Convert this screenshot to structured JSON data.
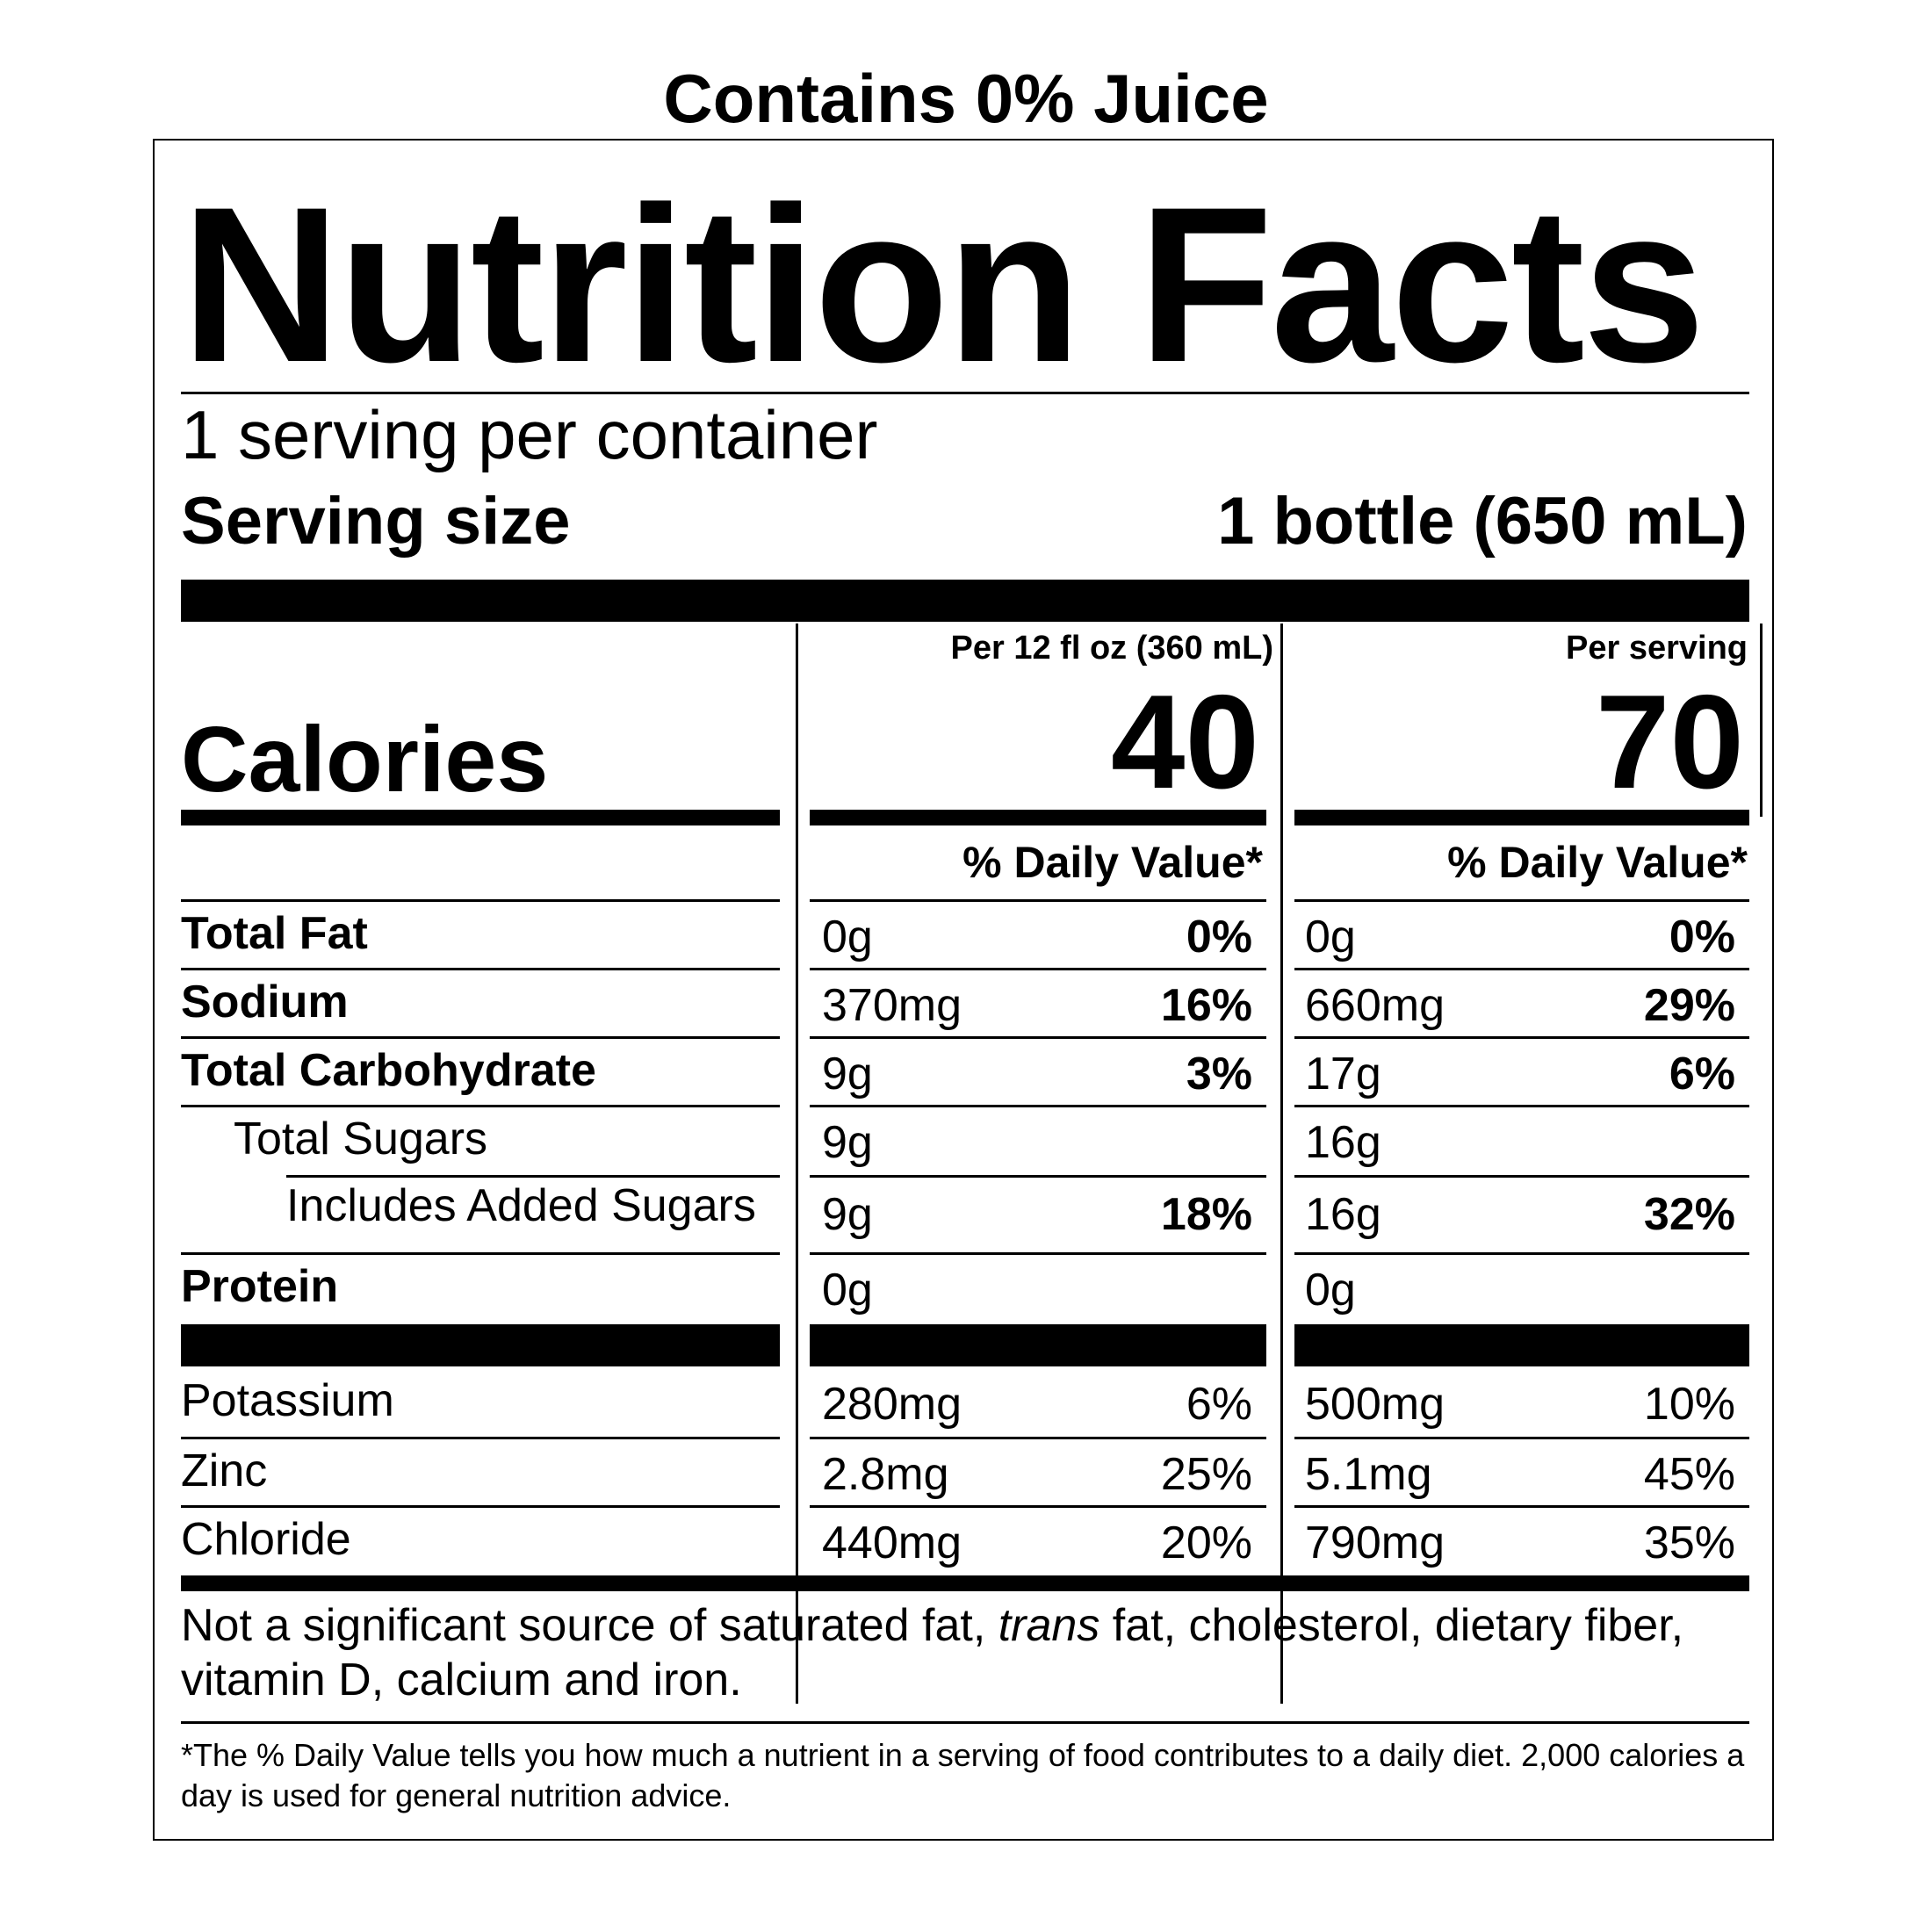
{
  "header": {
    "juice_note": "Contains 0% Juice"
  },
  "label": {
    "title": "Nutrition Facts",
    "servings_per_container": "1 serving per container",
    "serving_size_label": "Serving size",
    "serving_size_value": "1 bottle (650 mL)",
    "calories_label": "Calories",
    "columns": [
      {
        "header": "Per 12 fl oz (360 mL)",
        "calories": "40",
        "dv_header": "% Daily Value*"
      },
      {
        "header": "Per serving",
        "calories": "70",
        "dv_header": "% Daily Value*"
      }
    ],
    "nutrients": [
      {
        "name": "Total Fat",
        "amounts": [
          "0g",
          "0g"
        ],
        "dv": [
          "0%",
          "0%"
        ]
      },
      {
        "name": "Sodium",
        "amounts": [
          "370mg",
          "660mg"
        ],
        "dv": [
          "16%",
          "29%"
        ]
      },
      {
        "name": "Total Carbohydrate",
        "amounts": [
          "9g",
          "17g"
        ],
        "dv": [
          "3%",
          "6%"
        ]
      },
      {
        "name": "Total Sugars",
        "amounts": [
          "9g",
          "16g"
        ],
        "dv": [
          "",
          ""
        ]
      },
      {
        "name": "Includes Added Sugars",
        "amounts": [
          "9g",
          "16g"
        ],
        "dv": [
          "18%",
          "32%"
        ]
      },
      {
        "name": "Protein",
        "amounts": [
          "0g",
          "0g"
        ],
        "dv": [
          "",
          ""
        ]
      }
    ],
    "minerals": [
      {
        "name": "Potassium",
        "amounts": [
          "280mg",
          "500mg"
        ],
        "dv": [
          "6%",
          "10%"
        ]
      },
      {
        "name": "Zinc",
        "amounts": [
          "2.8mg",
          "5.1mg"
        ],
        "dv": [
          "25%",
          "45%"
        ]
      },
      {
        "name": "Chloride",
        "amounts": [
          "440mg",
          "790mg"
        ],
        "dv": [
          "20%",
          "35%"
        ]
      }
    ],
    "not_significant": {
      "before": "Not a significant source of saturated fat, ",
      "italic": "trans",
      "after": " fat, cholesterol, dietary fiber, vitamin D, calcium and iron."
    },
    "footnote": "*The % Daily Value tells you how much a nutrient in a serving of food contributes to a daily diet. 2,000 calories a day is used for general nutrition advice."
  }
}
